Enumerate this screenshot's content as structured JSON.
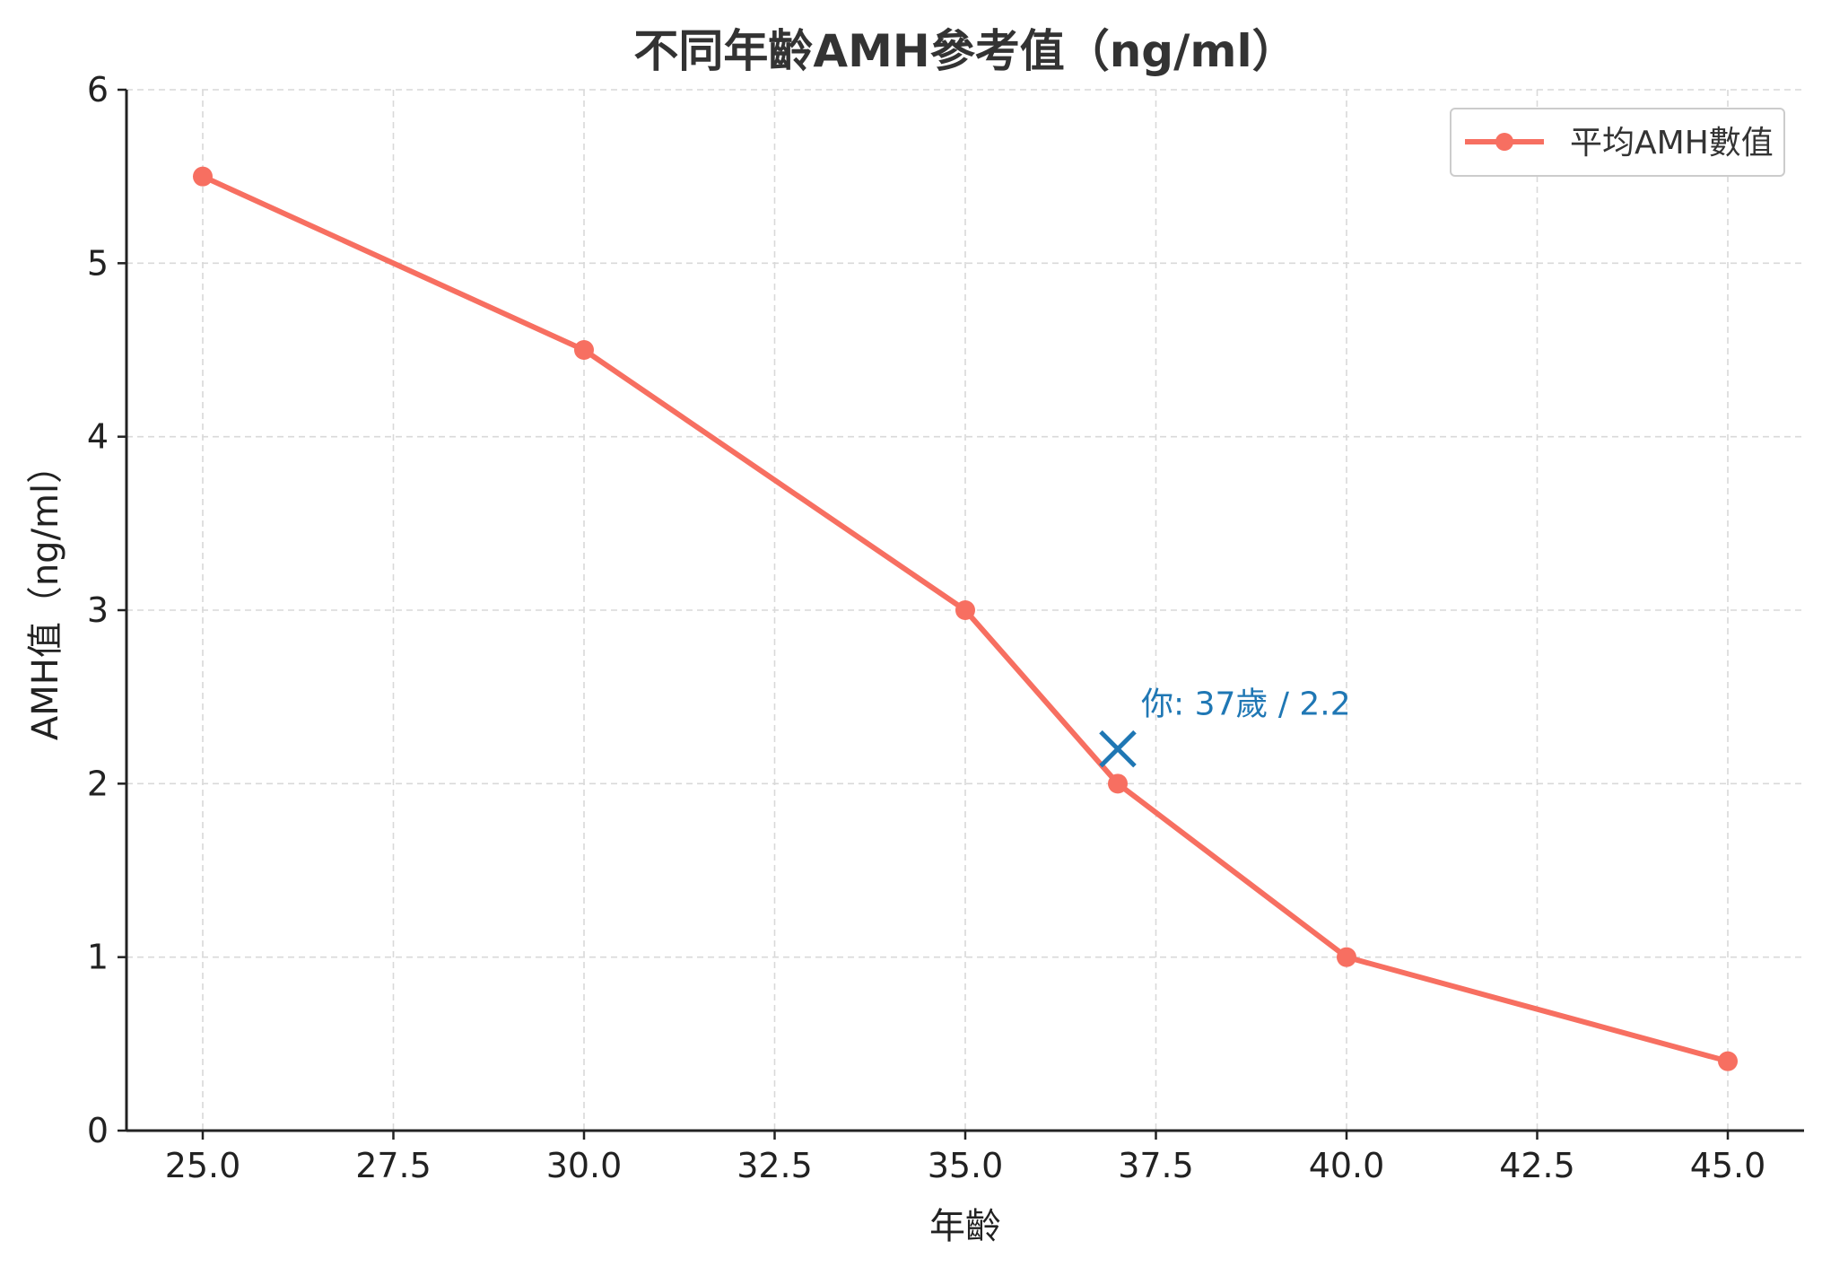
{
  "chart_data": {
    "type": "line",
    "title": "不同年齡AMH參考值（ng/ml）",
    "xlabel": "年齡",
    "ylabel": "AMH值（ng/ml）",
    "x": [
      25,
      30,
      35,
      37,
      40,
      45
    ],
    "series": [
      {
        "name": "平均AMH數值",
        "values": [
          5.5,
          4.5,
          3.0,
          2.0,
          1.0,
          0.4
        ],
        "color": "#f76f61"
      }
    ],
    "xlim": [
      24,
      46
    ],
    "ylim": [
      0,
      6
    ],
    "xticks": [
      25.0,
      27.5,
      30.0,
      32.5,
      35.0,
      37.5,
      40.0,
      42.5,
      45.0
    ],
    "xtick_labels": [
      "25.0",
      "27.5",
      "30.0",
      "32.5",
      "35.0",
      "37.5",
      "40.0",
      "42.5",
      "45.0"
    ],
    "yticks": [
      0,
      1,
      2,
      3,
      4,
      5,
      6
    ],
    "ytick_labels": [
      "0",
      "1",
      "2",
      "3",
      "4",
      "5",
      "6"
    ],
    "grid": true,
    "legend_position": "top-right",
    "annotation": {
      "x": 37,
      "y": 2.2,
      "marker": "x",
      "text": "你: 37歲 / 2.2",
      "color": "#1f77b4"
    }
  }
}
